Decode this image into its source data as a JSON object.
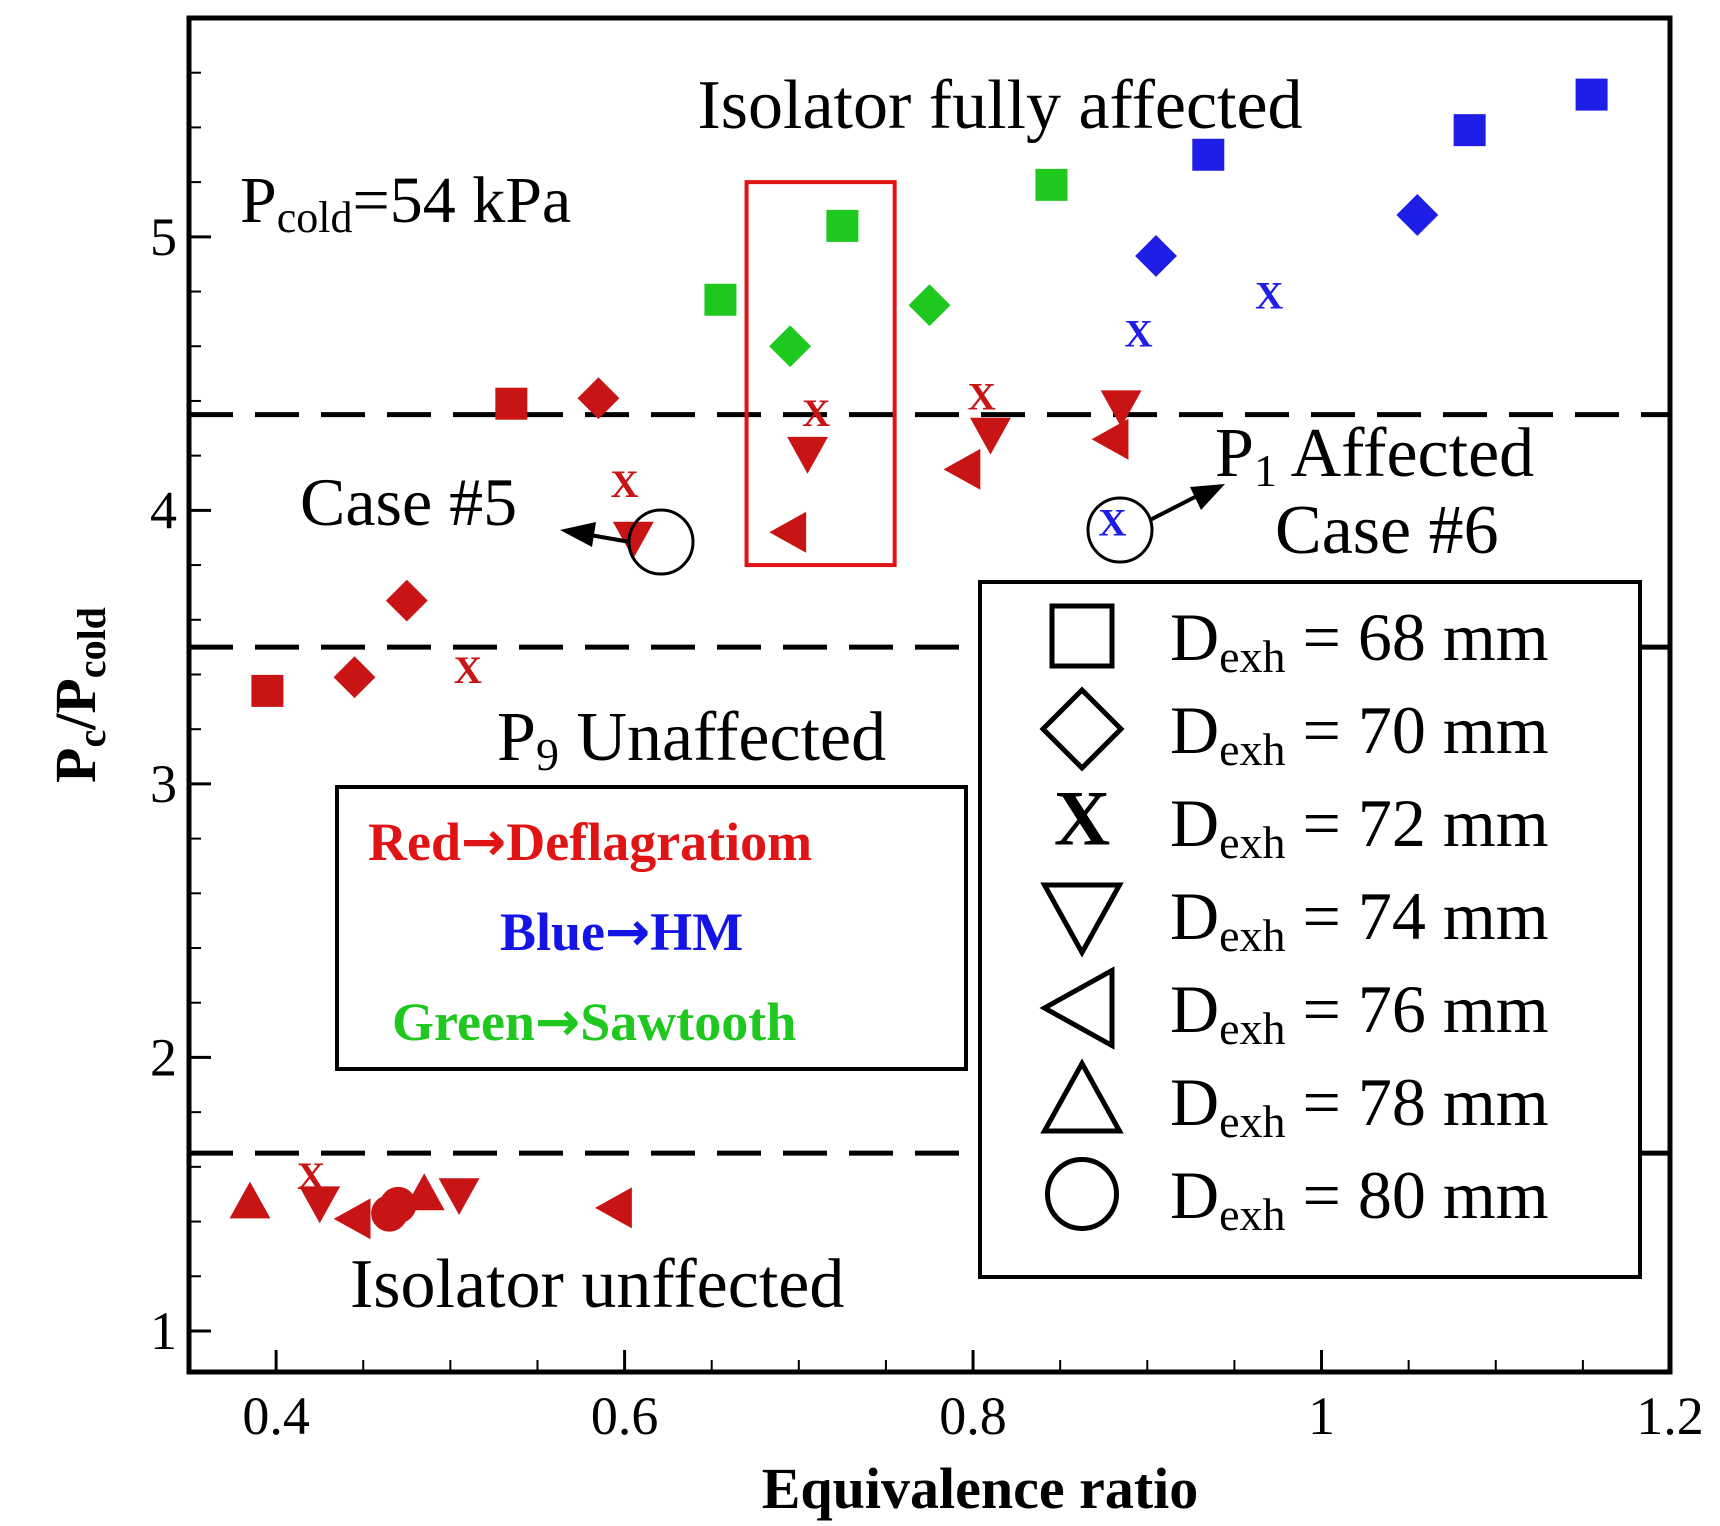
{
  "chart_data": {
    "type": "scatter",
    "xlabel": "Equivalence ratio",
    "ylabel_main": "P",
    "ylabel_sub1": "c",
    "ylabel_div": "/P",
    "ylabel_sub2": "cold",
    "xlim": [
      0.35,
      1.2
    ],
    "ylim": [
      0.85,
      5.8
    ],
    "x_ticks": [
      0.4,
      0.6,
      0.8,
      1.0,
      1.2
    ],
    "x_tick_labels": [
      "0.4",
      "0.6",
      "0.8",
      "1",
      "1.2"
    ],
    "y_ticks": [
      1,
      2,
      3,
      4,
      5
    ],
    "y_tick_labels": [
      "1",
      "2",
      "3",
      "4",
      "5"
    ],
    "thresholds": [
      4.35,
      3.5,
      1.65
    ],
    "colors": {
      "red": "#c81414",
      "green": "#1ec81e",
      "blue": "#1e1ee6"
    },
    "series": [
      {
        "name": "D_exh = 68 mm",
        "marker": "square",
        "points": [
          {
            "x": 0.395,
            "y": 3.34,
            "c": "red"
          },
          {
            "x": 0.535,
            "y": 4.39,
            "c": "red"
          },
          {
            "x": 0.655,
            "y": 4.77,
            "c": "green"
          },
          {
            "x": 0.725,
            "y": 5.04,
            "c": "green"
          },
          {
            "x": 0.845,
            "y": 5.19,
            "c": "green"
          },
          {
            "x": 0.935,
            "y": 5.3,
            "c": "blue"
          },
          {
            "x": 1.085,
            "y": 5.39,
            "c": "blue"
          },
          {
            "x": 1.155,
            "y": 5.52,
            "c": "blue"
          }
        ]
      },
      {
        "name": "D_exh = 70 mm",
        "marker": "diamond",
        "points": [
          {
            "x": 0.445,
            "y": 3.39,
            "c": "red"
          },
          {
            "x": 0.475,
            "y": 3.67,
            "c": "red"
          },
          {
            "x": 0.585,
            "y": 4.41,
            "c": "red"
          },
          {
            "x": 0.695,
            "y": 4.6,
            "c": "green"
          },
          {
            "x": 0.775,
            "y": 4.75,
            "c": "green"
          },
          {
            "x": 0.905,
            "y": 4.93,
            "c": "blue"
          },
          {
            "x": 1.055,
            "y": 5.08,
            "c": "blue"
          }
        ]
      },
      {
        "name": "D_exh = 72 mm",
        "marker": "x",
        "points": [
          {
            "x": 0.42,
            "y": 1.56,
            "c": "red"
          },
          {
            "x": 0.51,
            "y": 3.41,
            "c": "red"
          },
          {
            "x": 0.6,
            "y": 4.09,
            "c": "red"
          },
          {
            "x": 0.71,
            "y": 4.35,
            "c": "red"
          },
          {
            "x": 0.805,
            "y": 4.41,
            "c": "red"
          },
          {
            "x": 0.88,
            "y": 3.95,
            "c": "blue"
          },
          {
            "x": 0.895,
            "y": 4.64,
            "c": "blue"
          },
          {
            "x": 0.97,
            "y": 4.78,
            "c": "blue"
          }
        ]
      },
      {
        "name": "D_exh = 74 mm",
        "marker": "triangle-down",
        "points": [
          {
            "x": 0.425,
            "y": 1.47,
            "c": "red"
          },
          {
            "x": 0.505,
            "y": 1.5,
            "c": "red"
          },
          {
            "x": 0.605,
            "y": 3.9,
            "c": "red"
          },
          {
            "x": 0.705,
            "y": 4.21,
            "c": "red"
          },
          {
            "x": 0.81,
            "y": 4.28,
            "c": "red"
          },
          {
            "x": 0.885,
            "y": 4.38,
            "c": "red"
          }
        ]
      },
      {
        "name": "D_exh = 76 mm",
        "marker": "triangle-left",
        "points": [
          {
            "x": 0.445,
            "y": 1.41,
            "c": "red"
          },
          {
            "x": 0.595,
            "y": 1.45,
            "c": "red"
          },
          {
            "x": 0.695,
            "y": 3.92,
            "c": "red"
          },
          {
            "x": 0.795,
            "y": 4.15,
            "c": "red"
          },
          {
            "x": 0.88,
            "y": 4.26,
            "c": "red"
          }
        ]
      },
      {
        "name": "D_exh = 78 mm",
        "marker": "triangle-up",
        "points": [
          {
            "x": 0.385,
            "y": 1.47,
            "c": "red"
          },
          {
            "x": 0.485,
            "y": 1.5,
            "c": "red"
          }
        ]
      },
      {
        "name": "D_exh = 80 mm",
        "marker": "circle",
        "points": [
          {
            "x": 0.465,
            "y": 1.43,
            "c": "red"
          },
          {
            "x": 0.47,
            "y": 1.46,
            "c": "red"
          }
        ]
      }
    ],
    "highlight_box": {
      "x0": 0.67,
      "x1": 0.755,
      "y0": 3.8,
      "y1": 5.2
    },
    "annotations": {
      "isolator_fully": "Isolator fully affected",
      "pcold_main": "P",
      "pcold_sub": "cold",
      "pcold_value": "=54 kPa",
      "case5": "Case #5",
      "p1_main": "P",
      "p1_sub": "1",
      "p1_rest": " Affected",
      "case6": "Case #6",
      "p9_main": "P",
      "p9_sub": "9",
      "p9_rest": " Unaffected",
      "isolator_un": "Isolator unffected"
    },
    "color_legend": {
      "red_label": "Red",
      "red_desc": "Deflagratiom",
      "blue_label": "Blue",
      "blue_desc": "HM",
      "green_label": "Green",
      "green_desc": "Sawtooth"
    },
    "legend": {
      "prefix": "D",
      "sub": "exh",
      "entries": [
        {
          "marker": "square",
          "value": "= 68 mm"
        },
        {
          "marker": "diamond",
          "value": "= 70 mm"
        },
        {
          "marker": "x",
          "value": "= 72 mm"
        },
        {
          "marker": "triangle-down",
          "value": "= 74 mm"
        },
        {
          "marker": "triangle-left",
          "value": "= 76 mm"
        },
        {
          "marker": "triangle-up",
          "value": "= 78 mm"
        },
        {
          "marker": "circle",
          "value": "= 80 mm"
        }
      ]
    }
  }
}
